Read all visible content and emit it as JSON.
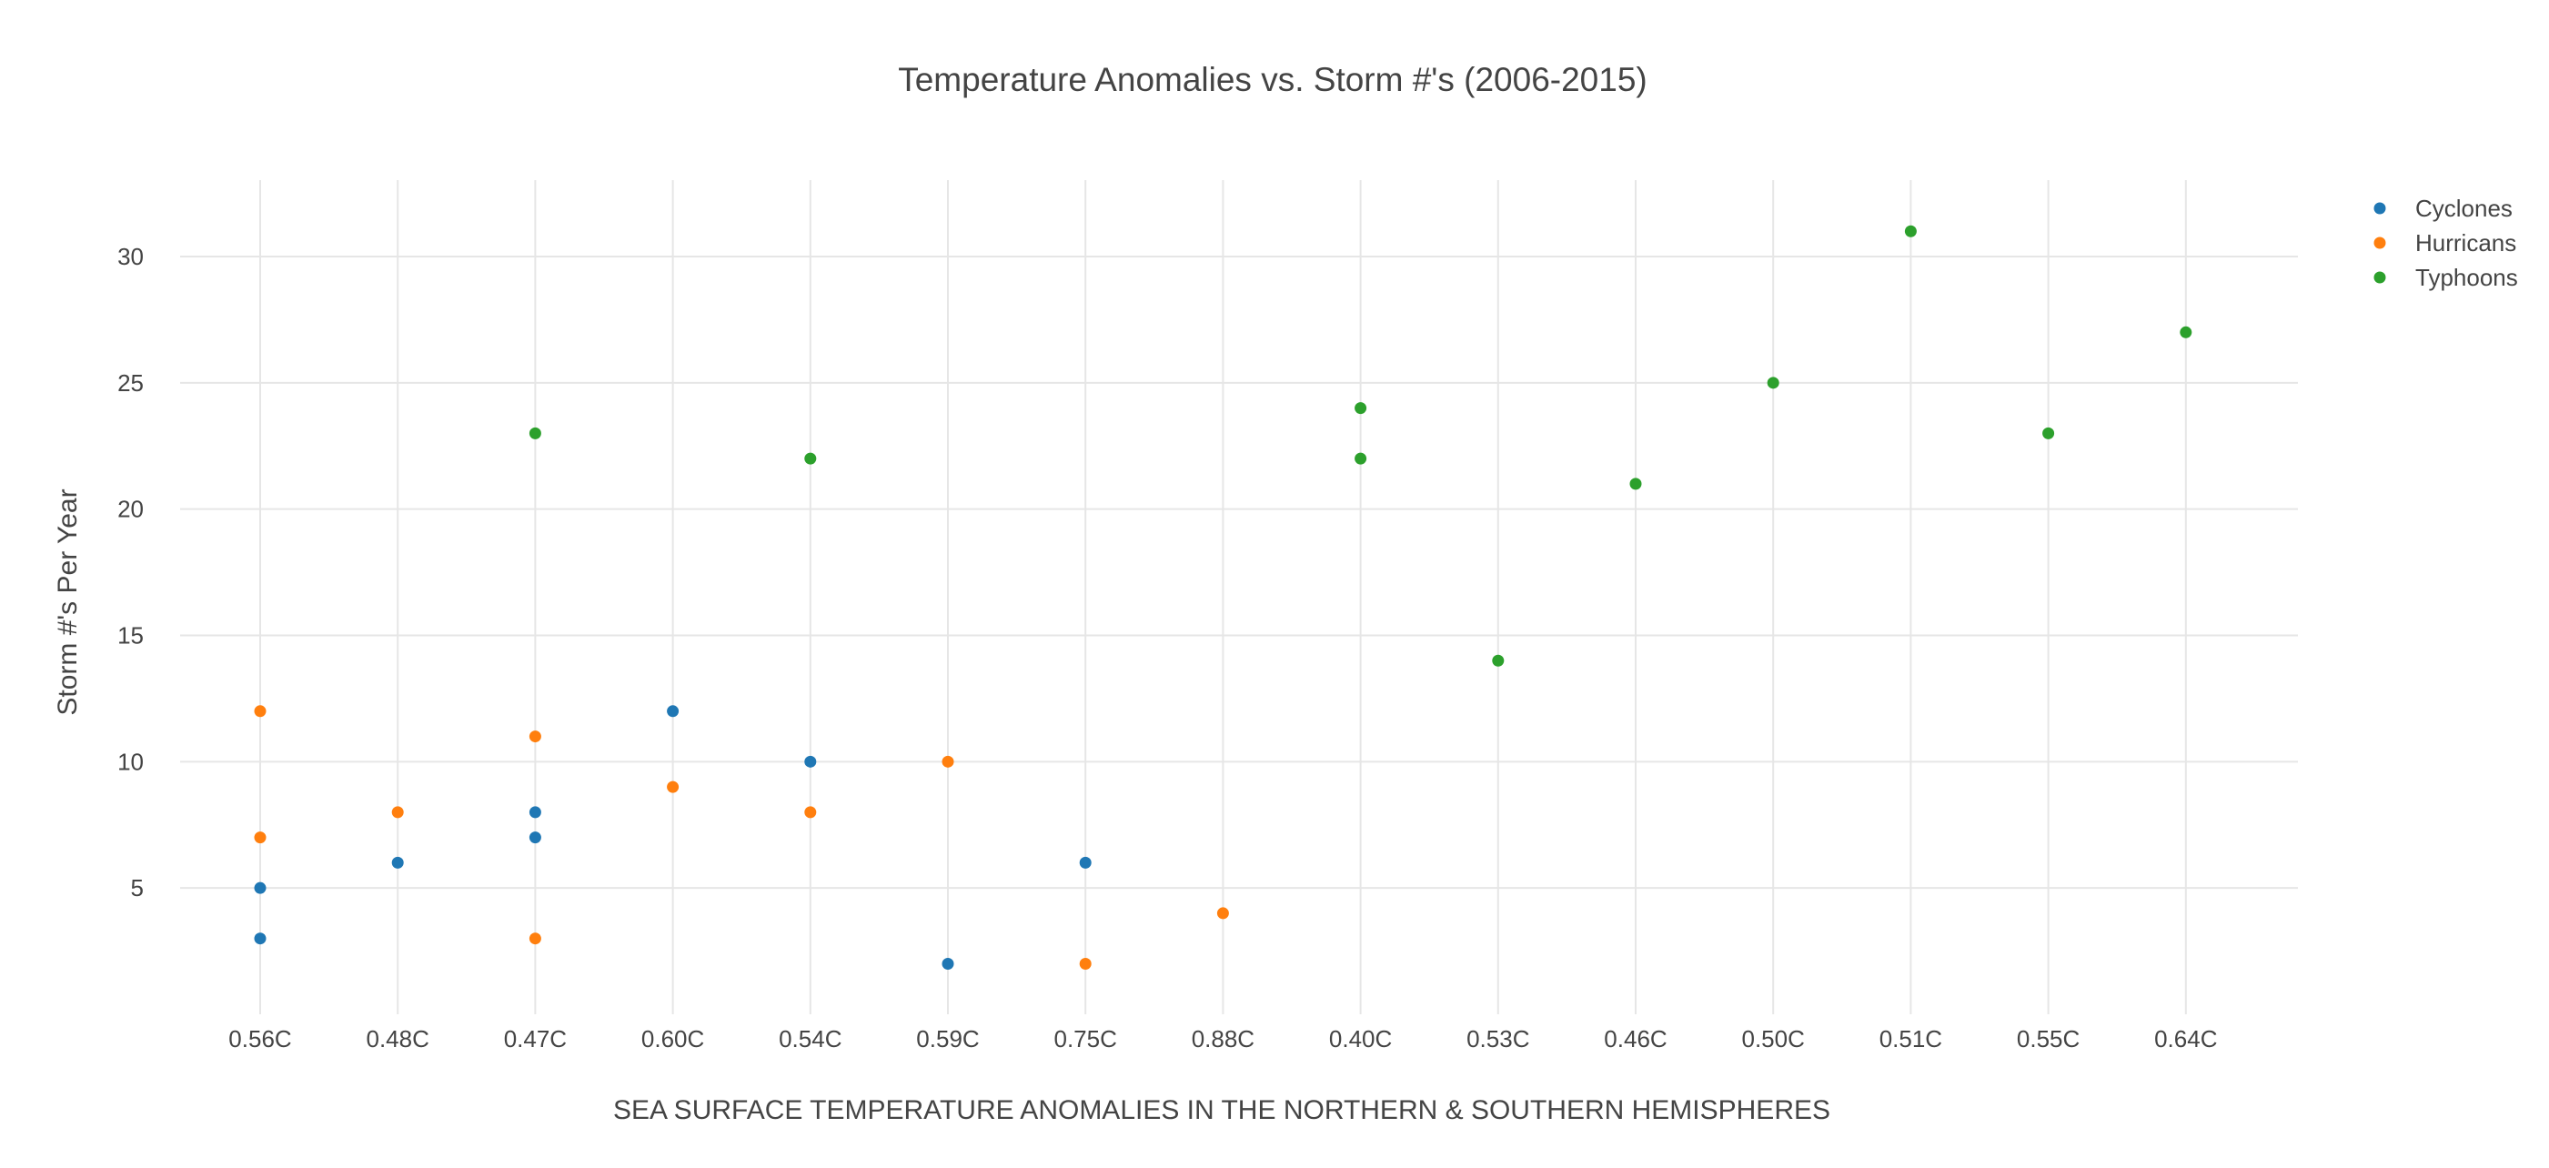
{
  "chart_data": {
    "type": "scatter",
    "title": "Temperature Anomalies vs. Storm #'s (2006-2015)",
    "xlabel": "SEA SURFACE TEMPERATURE ANOMALIES IN THE NORTHERN & SOUTHERN HEMISPHERES",
    "ylabel": "Storm #'s Per Year",
    "categories": [
      "0.56C",
      "0.48C",
      "0.47C",
      "0.60C",
      "0.54C",
      "0.59C",
      "0.75C",
      "0.88C",
      "0.40C",
      "0.53C",
      "0.46C",
      "0.50C",
      "0.51C",
      "0.55C",
      "0.64C"
    ],
    "yticks": [
      5,
      10,
      15,
      20,
      25,
      30
    ],
    "ylim": [
      0,
      33
    ],
    "grid": true,
    "legend_position": "top-right",
    "series": [
      {
        "name": "Cyclones",
        "color": "#1f77b4",
        "points": [
          {
            "x": "0.56C",
            "y": 5
          },
          {
            "x": "0.56C",
            "y": 3
          },
          {
            "x": "0.48C",
            "y": 6
          },
          {
            "x": "0.47C",
            "y": 8
          },
          {
            "x": "0.47C",
            "y": 7
          },
          {
            "x": "0.60C",
            "y": 12
          },
          {
            "x": "0.54C",
            "y": 10
          },
          {
            "x": "0.59C",
            "y": 2
          },
          {
            "x": "0.75C",
            "y": 6
          }
        ]
      },
      {
        "name": "Hurricans",
        "color": "#ff7f0e",
        "points": [
          {
            "x": "0.56C",
            "y": 12
          },
          {
            "x": "0.56C",
            "y": 7
          },
          {
            "x": "0.48C",
            "y": 8
          },
          {
            "x": "0.47C",
            "y": 11
          },
          {
            "x": "0.47C",
            "y": 3
          },
          {
            "x": "0.60C",
            "y": 9
          },
          {
            "x": "0.54C",
            "y": 8
          },
          {
            "x": "0.59C",
            "y": 10
          },
          {
            "x": "0.75C",
            "y": 2
          },
          {
            "x": "0.88C",
            "y": 4
          }
        ]
      },
      {
        "name": "Typhoons",
        "color": "#2ca02c",
        "points": [
          {
            "x": "0.47C",
            "y": 23
          },
          {
            "x": "0.54C",
            "y": 22
          },
          {
            "x": "0.40C",
            "y": 24
          },
          {
            "x": "0.40C",
            "y": 22
          },
          {
            "x": "0.53C",
            "y": 14
          },
          {
            "x": "0.46C",
            "y": 21
          },
          {
            "x": "0.50C",
            "y": 25
          },
          {
            "x": "0.51C",
            "y": 31
          },
          {
            "x": "0.55C",
            "y": 23
          },
          {
            "x": "0.64C",
            "y": 27
          }
        ]
      }
    ]
  }
}
